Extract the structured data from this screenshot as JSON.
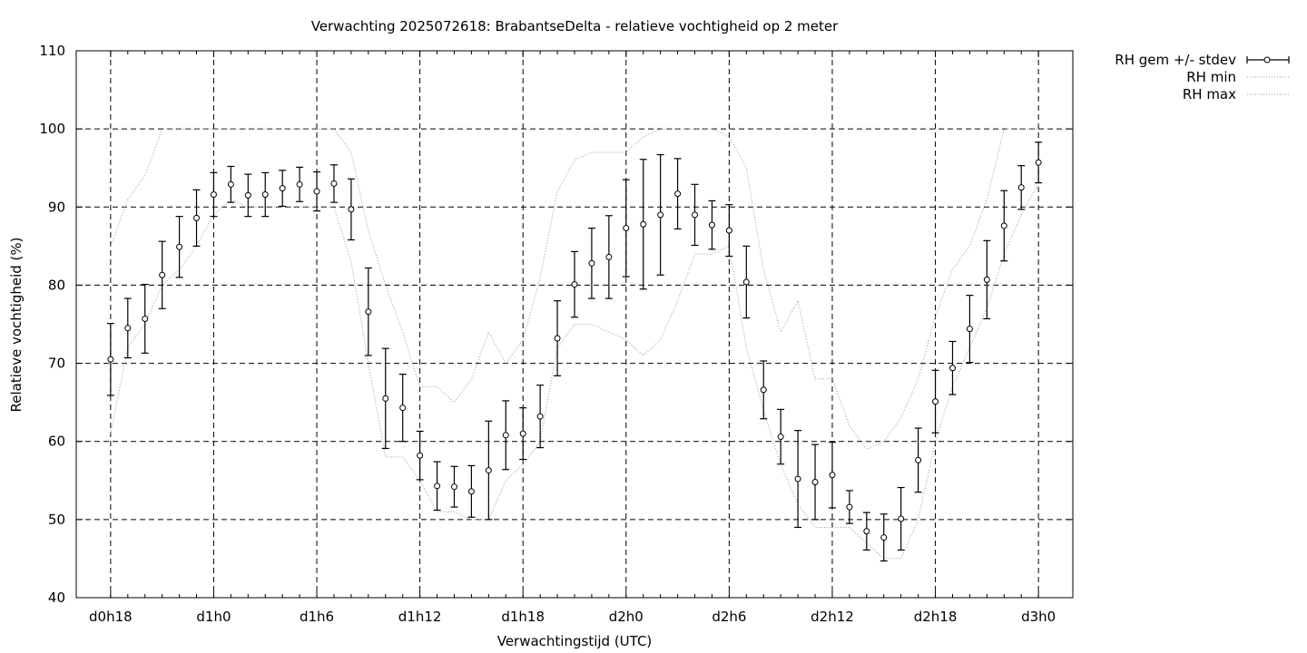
{
  "chart_data": {
    "type": "line",
    "title": "Verwachting 2025072618: BrabantseDelta - relatieve vochtigheid op 2 meter",
    "xlabel": "Verwachtingstijd (UTC)",
    "ylabel": "Relatieve vochtigheid (%)",
    "ylim": [
      40,
      110
    ],
    "yticks": [
      40,
      50,
      60,
      70,
      80,
      90,
      100,
      110
    ],
    "xticks": [
      {
        "label": "d0h18",
        "hour": 18
      },
      {
        "label": "d1h0",
        "hour": 24
      },
      {
        "label": "d1h6",
        "hour": 30
      },
      {
        "label": "d1h12",
        "hour": 36
      },
      {
        "label": "d1h18",
        "hour": 42
      },
      {
        "label": "d2h0",
        "hour": 48
      },
      {
        "label": "d2h6",
        "hour": 54
      },
      {
        "label": "d2h12",
        "hour": 60
      },
      {
        "label": "d2h18",
        "hour": 66
      },
      {
        "label": "d3h0",
        "hour": 72
      }
    ],
    "xlim_hours": [
      16,
      74
    ],
    "grid": true,
    "legend_position": "outside top-right",
    "x_hours": [
      18,
      19,
      20,
      21,
      22,
      23,
      24,
      25,
      26,
      27,
      28,
      29,
      30,
      31,
      32,
      33,
      34,
      35,
      36,
      37,
      38,
      39,
      40,
      41,
      42,
      43,
      44,
      45,
      46,
      47,
      48,
      49,
      50,
      51,
      52,
      53,
      54,
      55,
      56,
      57,
      58,
      59,
      60,
      61,
      62,
      63,
      64,
      65,
      66,
      67,
      68,
      69,
      70,
      71,
      72
    ],
    "series": [
      {
        "name": "RH gem +/- stdev",
        "style": "errorbars",
        "values": [
          70.5,
          74.5,
          75.7,
          81.3,
          84.9,
          88.6,
          91.6,
          92.9,
          91.5,
          91.6,
          92.4,
          92.9,
          92.0,
          93.0,
          89.7,
          76.6,
          65.5,
          64.3,
          58.2,
          54.3,
          54.2,
          53.6,
          56.3,
          60.8,
          61.0,
          63.2,
          73.2,
          80.1,
          82.8,
          83.6,
          87.3,
          87.8,
          89.0,
          91.7,
          89.0,
          87.7,
          87.0,
          80.4,
          66.6,
          60.6,
          55.2,
          54.8,
          55.7,
          51.6,
          48.5,
          47.7,
          50.1,
          57.6,
          65.1,
          69.4,
          74.4,
          80.7,
          87.6,
          92.5,
          95.7
        ],
        "stdev": [
          4.6,
          3.8,
          4.4,
          4.3,
          3.9,
          3.6,
          2.8,
          2.3,
          2.7,
          2.8,
          2.3,
          2.2,
          2.5,
          2.4,
          3.9,
          5.6,
          6.4,
          4.3,
          3.1,
          3.1,
          2.6,
          3.3,
          6.3,
          4.4,
          3.3,
          4.0,
          4.8,
          4.2,
          4.5,
          5.3,
          6.2,
          8.3,
          7.7,
          4.5,
          3.9,
          3.1,
          3.3,
          4.6,
          3.7,
          3.5,
          6.2,
          4.8,
          4.2,
          2.1,
          2.4,
          3.0,
          4.0,
          4.1,
          4.0,
          3.4,
          4.3,
          5.0,
          4.5,
          2.8,
          2.6
        ],
        "color": "#000000"
      },
      {
        "name": "RH min",
        "style": "dotted",
        "values": [
          61,
          72,
          75,
          80,
          82,
          85,
          89,
          91,
          90,
          90,
          90,
          90,
          90,
          90,
          83,
          70,
          58,
          58,
          55,
          51,
          51,
          50,
          50,
          55,
          57,
          60,
          72,
          75,
          75,
          74,
          73,
          71,
          73,
          78,
          84,
          84,
          85,
          72,
          64,
          57,
          52,
          49,
          49,
          49,
          47,
          45,
          45,
          50,
          60,
          67,
          72,
          77,
          84,
          89,
          93
        ],
        "color": "#999999"
      },
      {
        "name": "RH max",
        "style": "dotted",
        "values": [
          85,
          91,
          94,
          100,
          100,
          100,
          100,
          100,
          100,
          100,
          100,
          100,
          100,
          100,
          97,
          87,
          80,
          74,
          67,
          67,
          65,
          68,
          74,
          70,
          73,
          81,
          92,
          96,
          97,
          97,
          97,
          99,
          100,
          100,
          100,
          100,
          99,
          95,
          82,
          74,
          78,
          68,
          68,
          62,
          59,
          60,
          63,
          68,
          76,
          82,
          85,
          91,
          100,
          100,
          100
        ],
        "color": "#999999"
      }
    ]
  }
}
